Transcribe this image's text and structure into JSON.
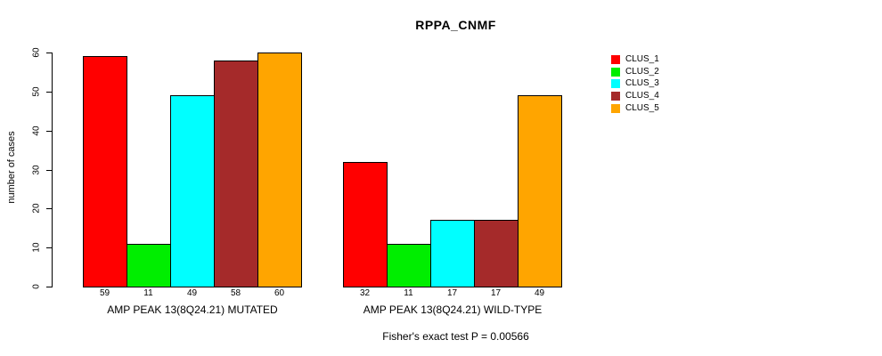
{
  "title": "RPPA_CNMF",
  "chart_data": {
    "type": "bar",
    "title": "RPPA_CNMF",
    "ylabel": "number of cases",
    "xlabel": "",
    "ylim": [
      0,
      60
    ],
    "yticks": [
      0,
      10,
      20,
      30,
      40,
      50,
      60
    ],
    "grid": false,
    "legend_position": "top-right",
    "bar_value_labels_shown": true,
    "categories": [
      "AMP PEAK 13(8Q24.21) MUTATED",
      "AMP PEAK 13(8Q24.21) WILD-TYPE"
    ],
    "series": [
      {
        "name": "CLUS_1",
        "color": "#FF0000",
        "values": [
          59,
          32
        ]
      },
      {
        "name": "CLUS_2",
        "color": "#00EE00",
        "values": [
          11,
          11
        ]
      },
      {
        "name": "CLUS_3",
        "color": "#00FFFF",
        "values": [
          49,
          17
        ]
      },
      {
        "name": "CLUS_4",
        "color": "#A52A2A",
        "values": [
          58,
          17
        ]
      },
      {
        "name": "CLUS_5",
        "color": "#FFA500",
        "values": [
          60,
          49
        ]
      }
    ],
    "groups": [
      {
        "label": "AMP PEAK 13(8Q24.21) MUTATED",
        "values": [
          59,
          11,
          49,
          58,
          60
        ]
      },
      {
        "label": "AMP PEAK 13(8Q24.21) WILD-TYPE",
        "values": [
          32,
          11,
          17,
          17,
          49
        ]
      }
    ],
    "annotation": "Fisher's exact test P = 0.00566"
  },
  "legend": {
    "items": [
      {
        "label": "CLUS_1",
        "color": "#FF0000"
      },
      {
        "label": "CLUS_2",
        "color": "#00EE00"
      },
      {
        "label": "CLUS_3",
        "color": "#00FFFF"
      },
      {
        "label": "CLUS_4",
        "color": "#A52A2A"
      },
      {
        "label": "CLUS_5",
        "color": "#FFA500"
      }
    ]
  },
  "colors": {
    "axis": "#000000",
    "text": "#000000",
    "background": "#FFFFFF"
  }
}
